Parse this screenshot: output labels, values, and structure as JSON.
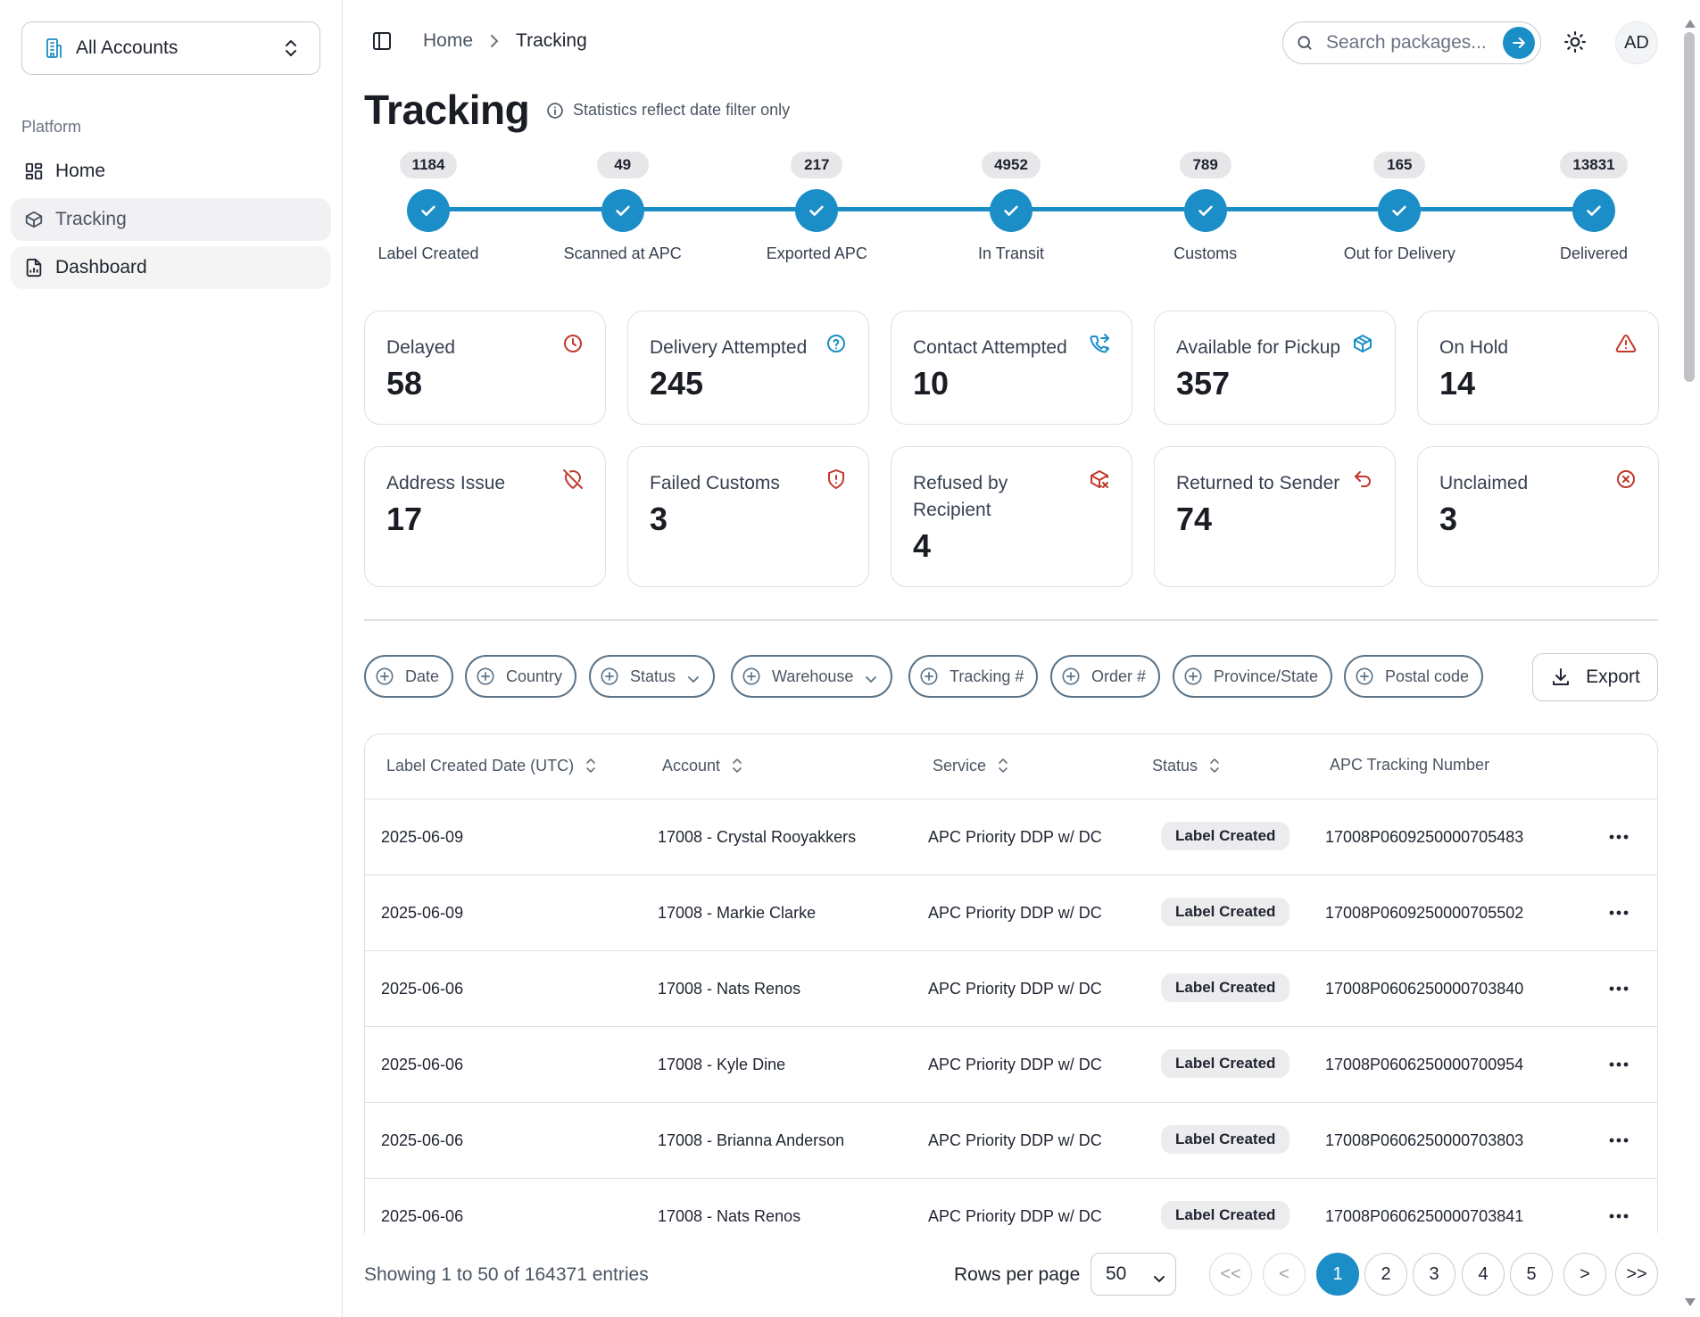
{
  "sidebar": {
    "account_selector": {
      "label": "All Accounts",
      "icon": "building-icon"
    },
    "section_label": "Platform",
    "items": [
      {
        "label": "Home",
        "icon": "layout-grid-icon",
        "state": "normal"
      },
      {
        "label": "Tracking",
        "icon": "package-icon",
        "state": "active"
      },
      {
        "label": "Dashboard",
        "icon": "file-chart-icon",
        "state": "normal"
      }
    ]
  },
  "header": {
    "breadcrumb": {
      "home": "Home",
      "current": "Tracking"
    },
    "search": {
      "placeholder": "Search packages..."
    },
    "avatar_initials": "AD"
  },
  "page": {
    "title": "Tracking",
    "note": "Statistics reflect date filter only"
  },
  "stepper": [
    {
      "count": "1184",
      "label": "Label Created"
    },
    {
      "count": "49",
      "label": "Scanned at APC"
    },
    {
      "count": "217",
      "label": "Exported APC"
    },
    {
      "count": "4952",
      "label": "In Transit"
    },
    {
      "count": "789",
      "label": "Customs"
    },
    {
      "count": "165",
      "label": "Out for Delivery"
    },
    {
      "count": "13831",
      "label": "Delivered"
    }
  ],
  "stat_cards": [
    {
      "title": "Delayed",
      "value": "58",
      "icon": "clock-icon",
      "color": "#c0392b"
    },
    {
      "title": "Delivery Attempted",
      "value": "245",
      "icon": "help-circle-icon",
      "color": "#1b8ec8"
    },
    {
      "title": "Contact Attempted",
      "value": "10",
      "icon": "phone-forwarded-icon",
      "color": "#1b8ec8"
    },
    {
      "title": "Available for Pickup",
      "value": "357",
      "icon": "package-check-icon",
      "color": "#1b8ec8"
    },
    {
      "title": "On Hold",
      "value": "14",
      "icon": "alert-triangle-icon",
      "color": "#c0392b"
    },
    {
      "title": "Address Issue",
      "value": "17",
      "icon": "map-pin-off-icon",
      "color": "#c0392b"
    },
    {
      "title": "Failed Customs",
      "value": "3",
      "icon": "shield-alert-icon",
      "color": "#c0392b"
    },
    {
      "title": "Refused by Recipient",
      "value": "4",
      "icon": "package-x-icon",
      "color": "#c0392b"
    },
    {
      "title": "Returned to Sender",
      "value": "74",
      "icon": "undo-icon",
      "color": "#c0392b"
    },
    {
      "title": "Unclaimed",
      "value": "3",
      "icon": "x-circle-icon",
      "color": "#c0392b"
    }
  ],
  "filters": [
    {
      "label": "Date",
      "dropdown": false
    },
    {
      "label": "Country",
      "dropdown": false
    },
    {
      "label": "Status",
      "dropdown": true
    },
    {
      "label": "Warehouse",
      "dropdown": true
    },
    {
      "label": "Tracking #",
      "dropdown": false
    },
    {
      "label": "Order #",
      "dropdown": false
    },
    {
      "label": "Province/State",
      "dropdown": false
    },
    {
      "label": "Postal code",
      "dropdown": false
    }
  ],
  "export_label": "Export",
  "table": {
    "columns": [
      "Label Created Date (UTC)",
      "Account",
      "Service",
      "Status",
      "APC Tracking Number"
    ],
    "rows": [
      {
        "date": "2025-06-09",
        "account": "17008 - Crystal Rooyakkers",
        "service": "APC Priority DDP w/ DC",
        "status": "Label Created",
        "tracking": "17008P0609250000705483"
      },
      {
        "date": "2025-06-09",
        "account": "17008 - Markie Clarke",
        "service": "APC Priority DDP w/ DC",
        "status": "Label Created",
        "tracking": "17008P0609250000705502"
      },
      {
        "date": "2025-06-06",
        "account": "17008 - Nats Renos",
        "service": "APC Priority DDP w/ DC",
        "status": "Label Created",
        "tracking": "17008P0606250000703840"
      },
      {
        "date": "2025-06-06",
        "account": "17008 - Kyle Dine",
        "service": "APC Priority DDP w/ DC",
        "status": "Label Created",
        "tracking": "17008P0606250000700954"
      },
      {
        "date": "2025-06-06",
        "account": "17008 - Brianna Anderson",
        "service": "APC Priority DDP w/ DC",
        "status": "Label Created",
        "tracking": "17008P0606250000703803"
      },
      {
        "date": "2025-06-06",
        "account": "17008 - Nats Renos",
        "service": "APC Priority DDP w/ DC",
        "status": "Label Created",
        "tracking": "17008P0606250000703841"
      }
    ]
  },
  "footer": {
    "showing": "Showing 1 to 50 of 164371 entries",
    "rows_per_page_label": "Rows per page",
    "rows_per_page_value": "50",
    "pagination": [
      "<<",
      "<",
      "1",
      "2",
      "3",
      "4",
      "5",
      ">",
      ">>"
    ],
    "current_page": "1"
  },
  "colors": {
    "accent": "#1b8ec8",
    "danger": "#c0392b",
    "chip_border": "#5c7487"
  }
}
